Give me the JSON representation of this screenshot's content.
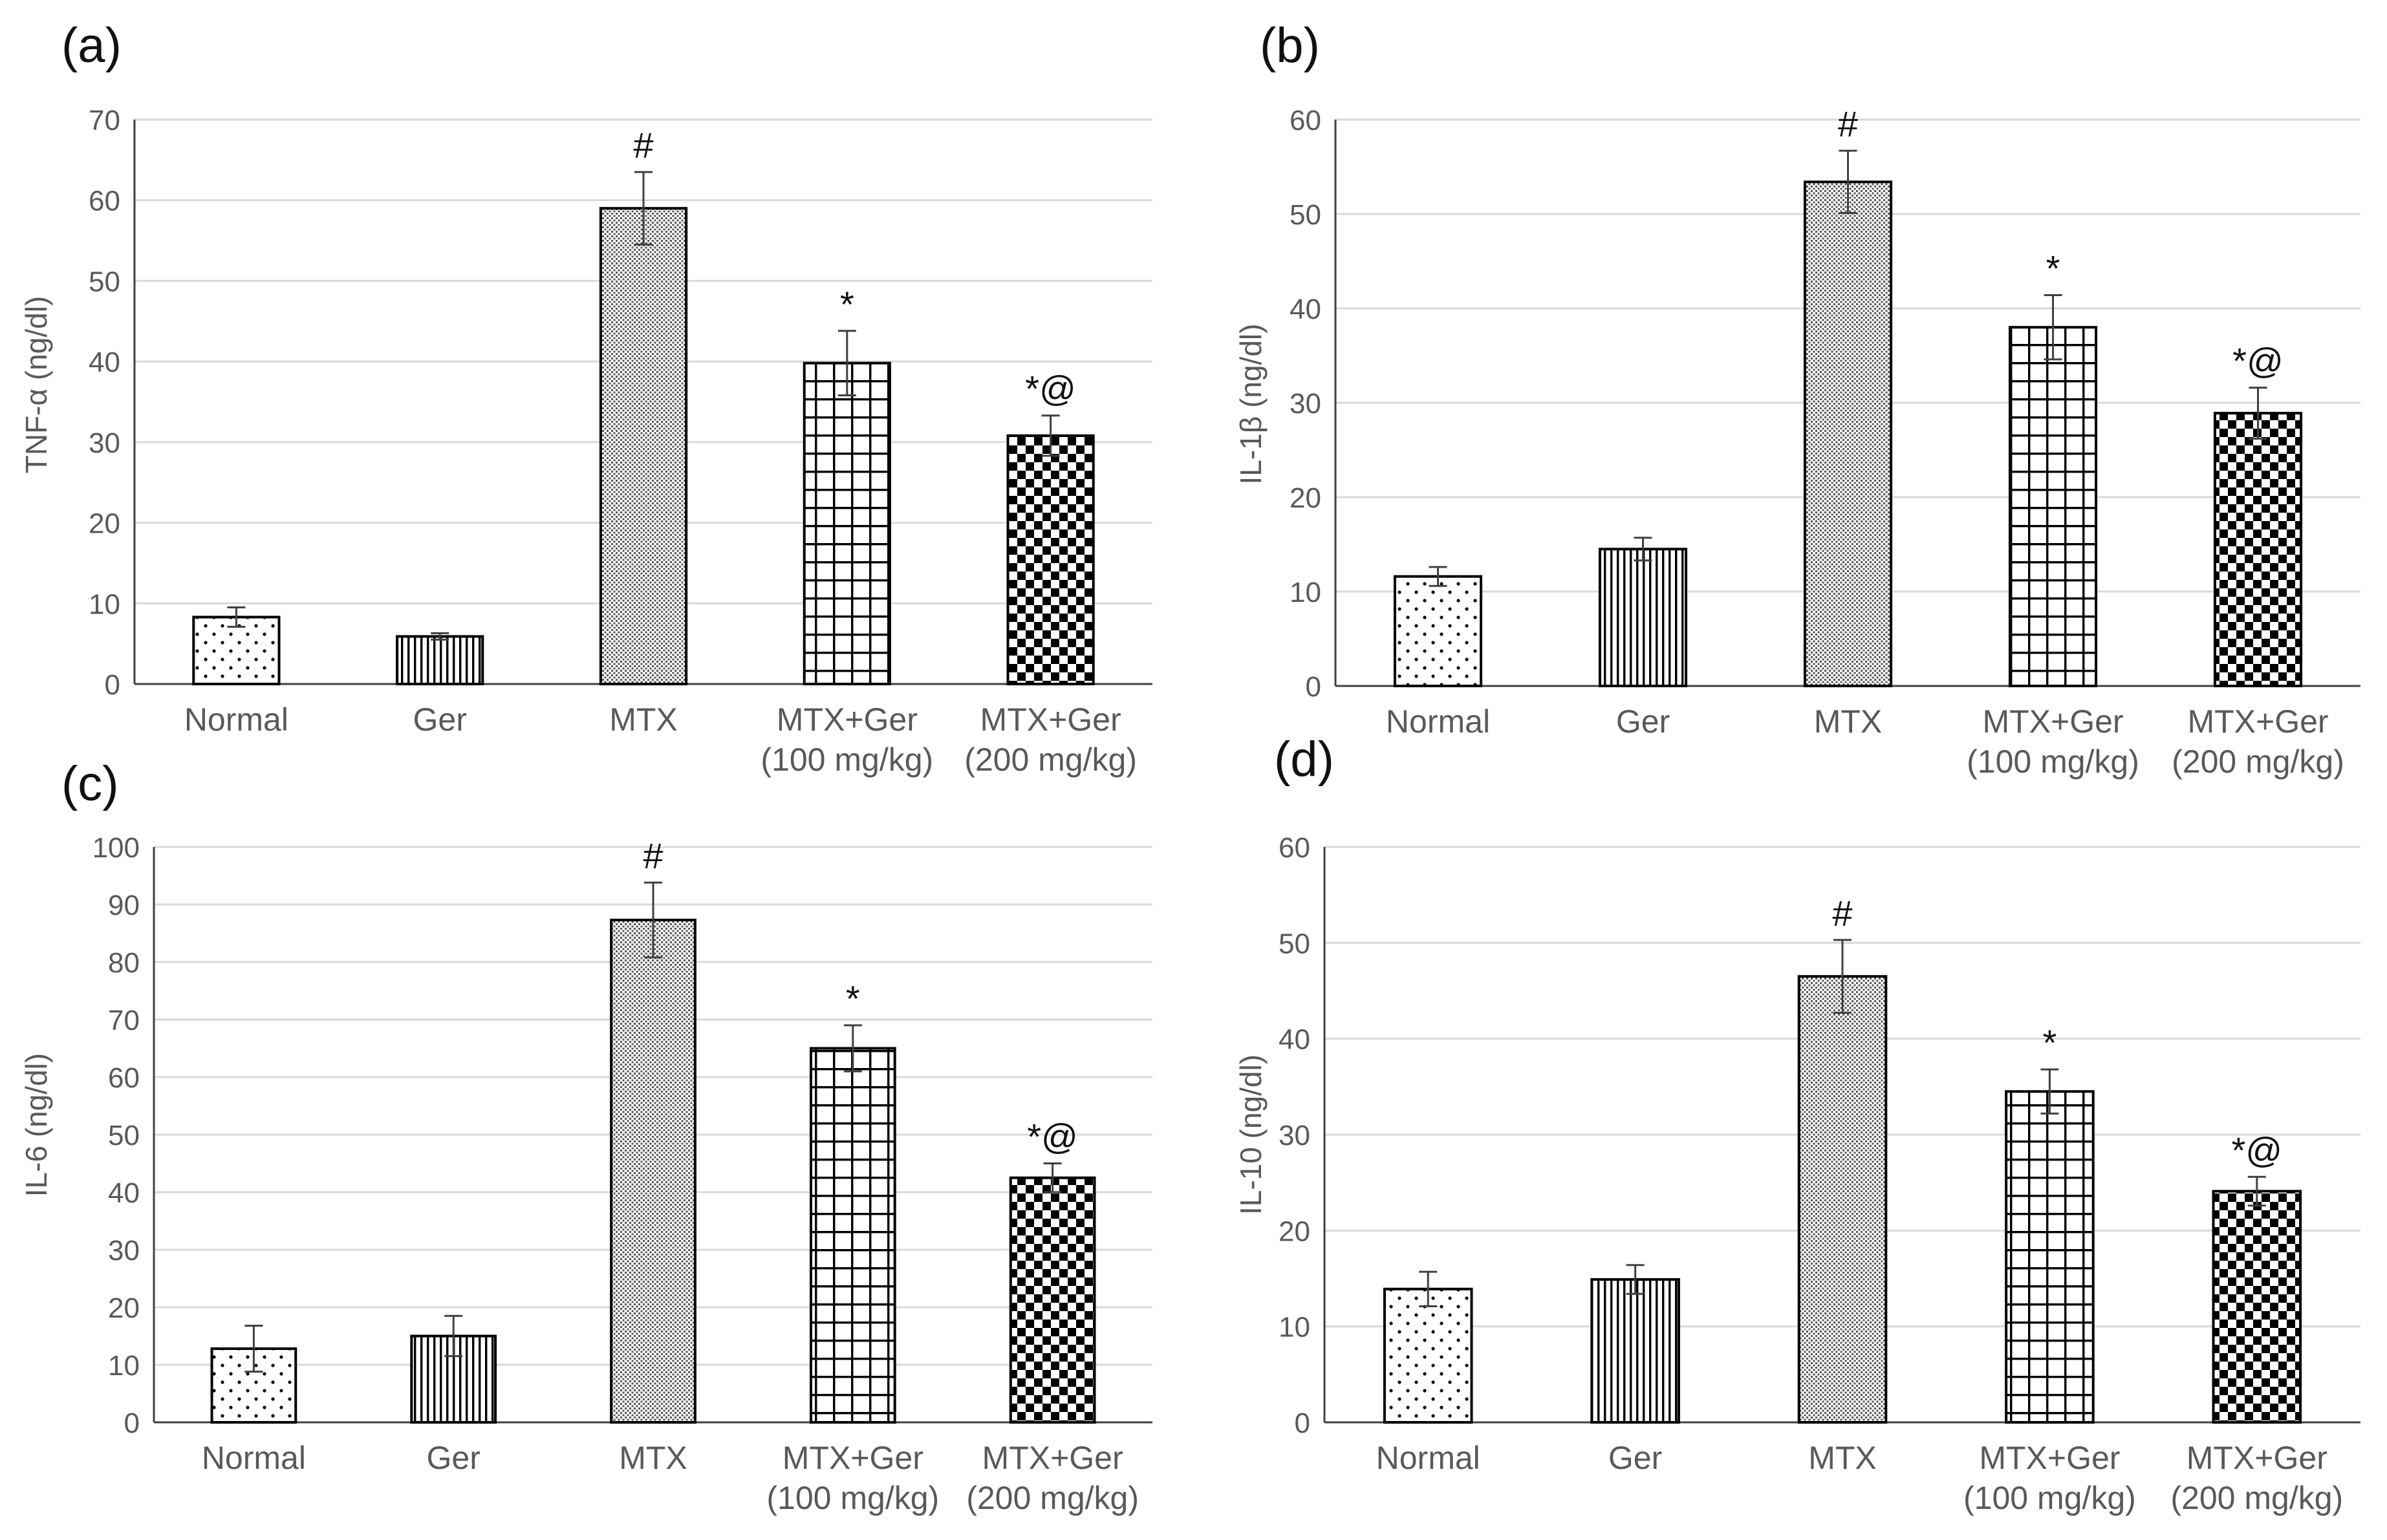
{
  "figure": {
    "colors": {
      "text": "#595959",
      "grid": "#d9d9d9",
      "axis": "#404040",
      "bar_fill": "#000000",
      "error_bar": "#404040"
    },
    "patterns": [
      "dots",
      "vertical-lines",
      "fine-dots",
      "grid",
      "checker"
    ]
  },
  "chart_data": [
    {
      "type": "bar",
      "panel_label": "(a)",
      "ylabel": "TNF-α (ng/dl)",
      "ylim": [
        0,
        70
      ],
      "ytick_step": 10,
      "yticks": [
        "0",
        "10",
        "20",
        "30",
        "40",
        "50",
        "60",
        "70"
      ],
      "grid": true,
      "categories": [
        {
          "line1": "Normal",
          "line2": ""
        },
        {
          "line1": "Ger",
          "line2": ""
        },
        {
          "line1": "MTX",
          "line2": ""
        },
        {
          "line1": "MTX+Ger",
          "line2": "(100 mg/kg)"
        },
        {
          "line1": "MTX+Ger",
          "line2": "(200 mg/kg)"
        }
      ],
      "values": [
        8.3,
        5.9,
        59,
        39.8,
        30.8
      ],
      "errors": [
        1.2,
        0.4,
        4.5,
        4.0,
        2.5
      ],
      "significance": [
        "",
        "",
        "#",
        "*",
        "*@"
      ]
    },
    {
      "type": "bar",
      "panel_label": "(b)",
      "ylabel": "IL-1β (ng/dl)",
      "ylim": [
        0,
        60
      ],
      "ytick_step": 10,
      "yticks": [
        "0",
        "10",
        "20",
        "30",
        "40",
        "50",
        "60"
      ],
      "grid": true,
      "categories": [
        {
          "line1": "Normal",
          "line2": ""
        },
        {
          "line1": "Ger",
          "line2": ""
        },
        {
          "line1": "MTX",
          "line2": ""
        },
        {
          "line1": "MTX+Ger",
          "line2": "(100 mg/kg)"
        },
        {
          "line1": "MTX+Ger",
          "line2": "(200 mg/kg)"
        }
      ],
      "values": [
        11.6,
        14.5,
        53.4,
        38,
        28.9
      ],
      "errors": [
        1.0,
        1.2,
        3.3,
        3.4,
        2.7
      ],
      "significance": [
        "",
        "",
        "#",
        "*",
        "*@"
      ]
    },
    {
      "type": "bar",
      "panel_label": "(c)",
      "ylabel": "IL-6 (ng/dl)",
      "ylim": [
        0,
        100
      ],
      "ytick_step": 10,
      "yticks": [
        "0",
        "10",
        "20",
        "30",
        "40",
        "50",
        "60",
        "70",
        "80",
        "90",
        "100"
      ],
      "grid": true,
      "categories": [
        {
          "line1": "Normal",
          "line2": ""
        },
        {
          "line1": "Ger",
          "line2": ""
        },
        {
          "line1": "MTX",
          "line2": ""
        },
        {
          "line1": "MTX+Ger",
          "line2": "(100 mg/kg)"
        },
        {
          "line1": "MTX+Ger",
          "line2": "(200 mg/kg)"
        }
      ],
      "values": [
        12.8,
        15,
        87.3,
        65,
        42.5
      ],
      "errors": [
        4.0,
        3.5,
        6.5,
        4.0,
        2.5
      ],
      "significance": [
        "",
        "",
        "#",
        "*",
        "*@"
      ]
    },
    {
      "type": "bar",
      "panel_label": "(d)",
      "ylabel": "IL-10 (ng/dl)",
      "ylim": [
        0,
        60
      ],
      "ytick_step": 10,
      "yticks": [
        "0",
        "10",
        "20",
        "30",
        "40",
        "50",
        "60"
      ],
      "grid": true,
      "categories": [
        {
          "line1": "Normal",
          "line2": ""
        },
        {
          "line1": "Ger",
          "line2": ""
        },
        {
          "line1": "MTX",
          "line2": ""
        },
        {
          "line1": "MTX+Ger",
          "line2": "(100 mg/kg)"
        },
        {
          "line1": "MTX+Ger",
          "line2": "(200 mg/kg)"
        }
      ],
      "values": [
        13.9,
        14.9,
        46.5,
        34.5,
        24.1
      ],
      "errors": [
        1.8,
        1.5,
        3.8,
        2.3,
        1.5
      ],
      "significance": [
        "",
        "",
        "#",
        "*",
        "*@"
      ]
    }
  ]
}
